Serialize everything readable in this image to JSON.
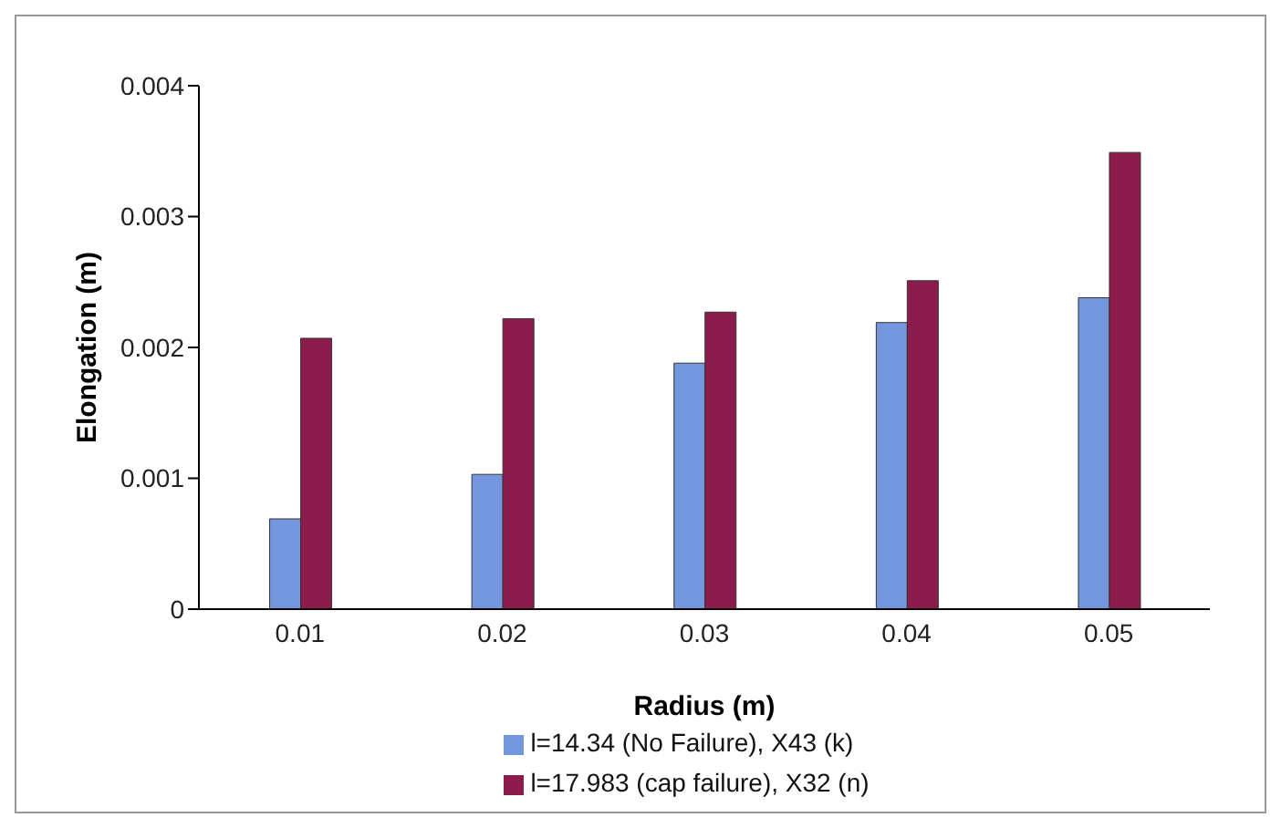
{
  "chart_data": {
    "type": "bar",
    "xlabel": "Radius (m)",
    "ylabel": "Elongation (m)",
    "categories": [
      "0.01",
      "0.02",
      "0.03",
      "0.04",
      "0.05"
    ],
    "series": [
      {
        "name": "l=14.34 (No Failure), X43 (k)",
        "color": "#7396dc",
        "values": [
          0.00069,
          0.00103,
          0.00188,
          0.00219,
          0.00238
        ]
      },
      {
        "name": "l=17.983 (cap failure), X32 (n)",
        "color": "#8c1c4c",
        "values": [
          0.00207,
          0.00222,
          0.00227,
          0.00251,
          0.00349
        ]
      }
    ],
    "ylim": [
      0,
      0.004
    ],
    "yticks": [
      0,
      0.001,
      0.002,
      0.003,
      0.004
    ],
    "grid": false,
    "legend": "bottom"
  }
}
